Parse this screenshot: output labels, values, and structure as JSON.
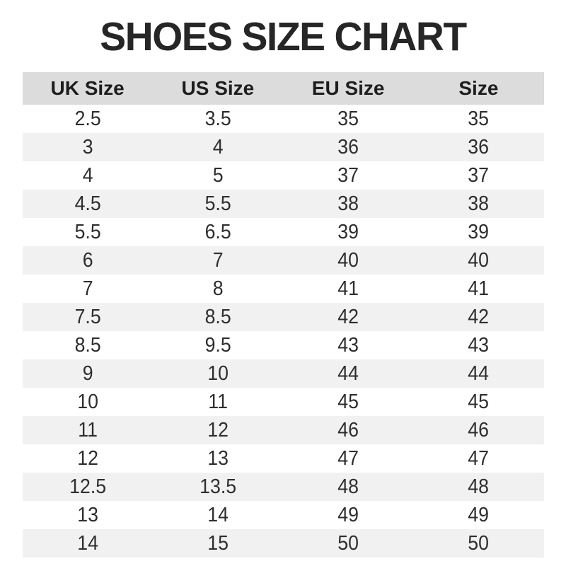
{
  "title": "SHOES SIZE CHART",
  "chart_data": {
    "type": "table",
    "title": "SHOES SIZE CHART",
    "columns": [
      "UK Size",
      "US Size",
      "EU Size",
      "Size"
    ],
    "rows": [
      [
        "2.5",
        "3.5",
        "35",
        "35"
      ],
      [
        "3",
        "4",
        "36",
        "36"
      ],
      [
        "4",
        "5",
        "37",
        "37"
      ],
      [
        "4.5",
        "5.5",
        "38",
        "38"
      ],
      [
        "5.5",
        "6.5",
        "39",
        "39"
      ],
      [
        "6",
        "7",
        "40",
        "40"
      ],
      [
        "7",
        "8",
        "41",
        "41"
      ],
      [
        "7.5",
        "8.5",
        "42",
        "42"
      ],
      [
        "8.5",
        "9.5",
        "43",
        "43"
      ],
      [
        "9",
        "10",
        "44",
        "44"
      ],
      [
        "10",
        "11",
        "45",
        "45"
      ],
      [
        "11",
        "12",
        "46",
        "46"
      ],
      [
        "12",
        "13",
        "47",
        "47"
      ],
      [
        "12.5",
        "13.5",
        "48",
        "48"
      ],
      [
        "13",
        "14",
        "49",
        "49"
      ],
      [
        "14",
        "15",
        "50",
        "50"
      ]
    ],
    "layout": {
      "zebra_striping": true,
      "header_position": "top"
    }
  },
  "colors": {
    "background": "#ffffff",
    "header_bg": "#dcdcdc",
    "row_alt_bg": "#f1f1f1",
    "title_text": "#262626",
    "cell_text": "#2e2e2e"
  }
}
